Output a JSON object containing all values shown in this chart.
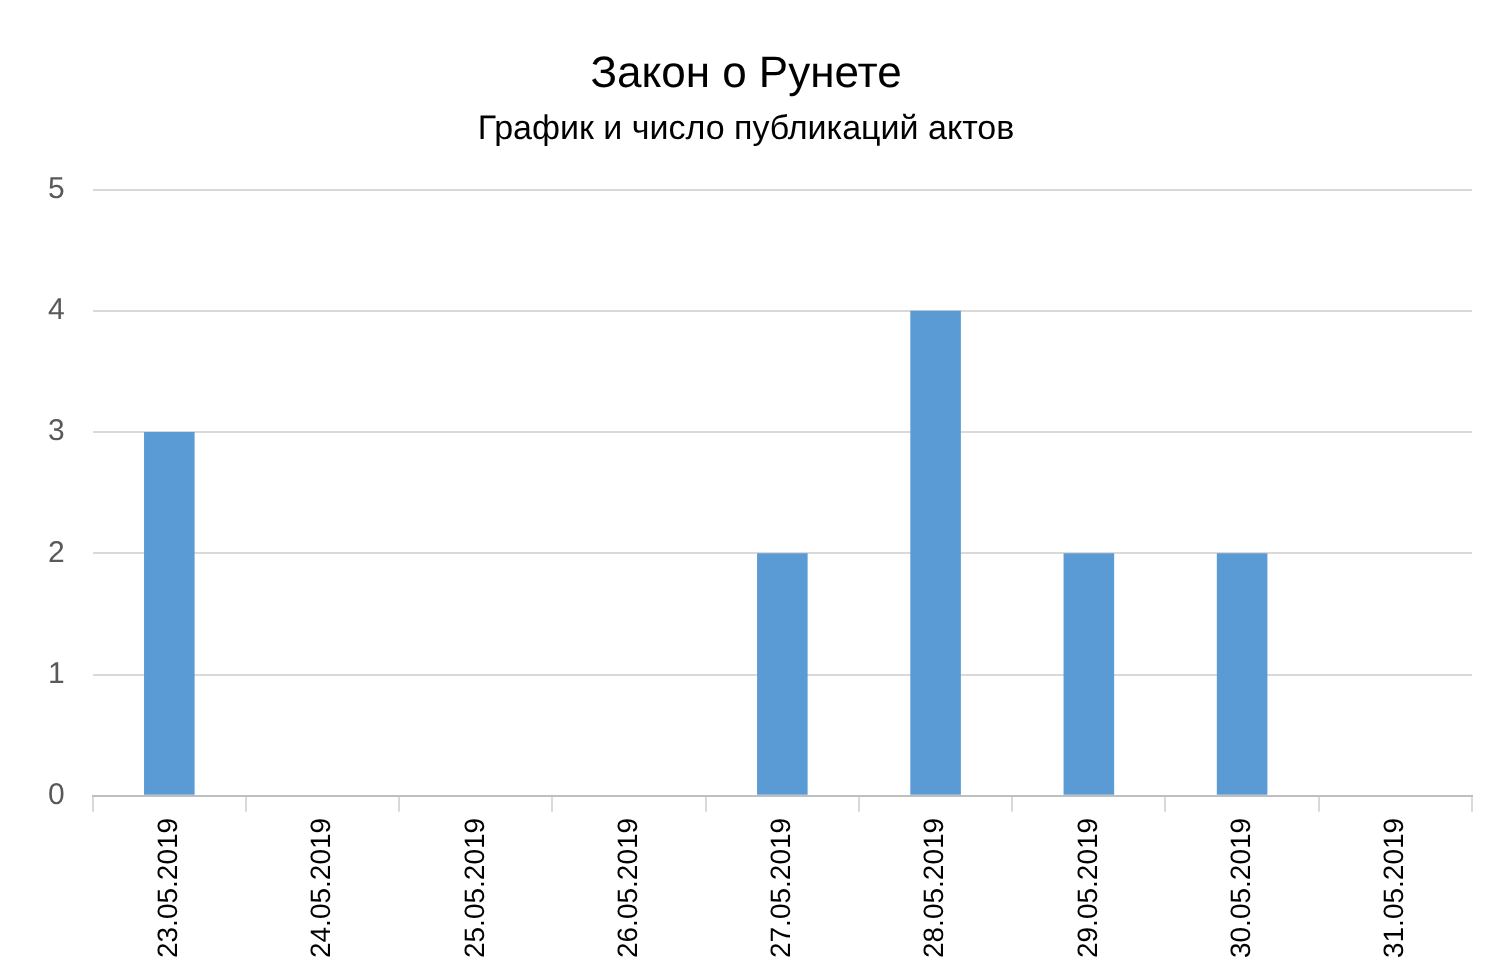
{
  "chart_data": {
    "type": "bar",
    "title": "Закон о Рунете",
    "subtitle": "График и число публикаций актов",
    "categories": [
      "23.05.2019",
      "24.05.2019",
      "25.05.2019",
      "26.05.2019",
      "27.05.2019",
      "28.05.2019",
      "29.05.2019",
      "30.05.2019",
      "31.05.2019"
    ],
    "values": [
      3,
      0,
      0,
      0,
      2,
      4,
      2,
      2,
      0
    ],
    "color": "#5b9bd5",
    "ylim": [
      0,
      5
    ],
    "yticks": [
      0,
      1,
      2,
      3,
      4,
      5
    ],
    "grid": "y"
  }
}
